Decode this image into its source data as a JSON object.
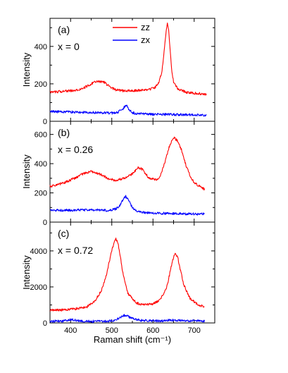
{
  "chart_data": [
    {
      "type": "line",
      "panel_label": "(a)",
      "annotation": "x = 0",
      "ylabel": "Intensity",
      "xlim": [
        350,
        750
      ],
      "ylim": [
        0,
        550
      ],
      "yticks": [
        0,
        200,
        400
      ],
      "legend": {
        "position": "top-center",
        "entries": [
          "zz",
          "zx"
        ]
      },
      "series": [
        {
          "name": "zz",
          "color": "#ff0000",
          "x": [
            350,
            380,
            410,
            430,
            450,
            465,
            480,
            495,
            510,
            530,
            550,
            570,
            590,
            605,
            615,
            622,
            628,
            632,
            635,
            638,
            641,
            645,
            650,
            660,
            680,
            700,
            730
          ],
          "y": [
            155,
            160,
            165,
            175,
            200,
            215,
            210,
            185,
            168,
            162,
            163,
            165,
            170,
            180,
            210,
            270,
            390,
            480,
            525,
            495,
            400,
            280,
            210,
            175,
            155,
            150,
            145
          ]
        },
        {
          "name": "zx",
          "color": "#0000ff",
          "x": [
            350,
            400,
            450,
            500,
            515,
            525,
            532,
            537,
            542,
            550,
            565,
            600,
            650,
            700,
            730
          ],
          "y": [
            52,
            50,
            47,
            44,
            48,
            62,
            80,
            80,
            62,
            45,
            40,
            37,
            36,
            34,
            33
          ]
        }
      ]
    },
    {
      "type": "line",
      "panel_label": "(b)",
      "annotation": "x = 0.26",
      "ylabel": "Intensity",
      "xlim": [
        350,
        750
      ],
      "ylim": [
        0,
        690
      ],
      "yticks": [
        0,
        200,
        400,
        600
      ],
      "series": [
        {
          "name": "zz",
          "color": "#ff0000",
          "x": [
            350,
            380,
            410,
            430,
            450,
            470,
            490,
            510,
            530,
            550,
            565,
            575,
            590,
            610,
            620,
            630,
            640,
            650,
            660,
            670,
            680,
            690,
            700,
            715,
            725
          ],
          "y": [
            245,
            265,
            300,
            330,
            345,
            330,
            300,
            285,
            300,
            330,
            375,
            360,
            300,
            290,
            330,
            420,
            520,
            580,
            555,
            490,
            390,
            320,
            270,
            240,
            225
          ]
        },
        {
          "name": "zx",
          "color": "#0000ff",
          "x": [
            350,
            400,
            450,
            490,
            510,
            520,
            528,
            534,
            540,
            548,
            555,
            565,
            580,
            620,
            680,
            725
          ],
          "y": [
            80,
            82,
            84,
            80,
            90,
            115,
            160,
            175,
            155,
            110,
            85,
            72,
            65,
            60,
            57,
            55
          ]
        }
      ]
    },
    {
      "type": "line",
      "panel_label": "(c)",
      "annotation": "x = 0.72",
      "ylabel": "Intensity",
      "xlabel": "Raman shift (cm⁻¹)",
      "xlim": [
        350,
        750
      ],
      "ylim": [
        0,
        5600
      ],
      "yticks": [
        0,
        2000,
        4000
      ],
      "xticks": [
        400,
        500,
        600,
        700
      ],
      "series": [
        {
          "name": "zz",
          "color": "#ff0000",
          "x": [
            350,
            380,
            410,
            440,
            460,
            475,
            485,
            493,
            500,
            505,
            510,
            515,
            520,
            528,
            540,
            560,
            580,
            600,
            615,
            625,
            635,
            643,
            650,
            655,
            660,
            667,
            675,
            690,
            710,
            725
          ],
          "y": [
            700,
            720,
            780,
            900,
            1250,
            1800,
            2500,
            3300,
            4000,
            4450,
            4650,
            4450,
            3800,
            2600,
            1600,
            1100,
            1000,
            1050,
            1250,
            1550,
            2100,
            3000,
            3650,
            3850,
            3650,
            2900,
            2100,
            1350,
            1000,
            900
          ]
        },
        {
          "name": "zx",
          "color": "#0000ff",
          "x": [
            350,
            380,
            395,
            405,
            420,
            450,
            490,
            510,
            522,
            530,
            538,
            550,
            570,
            610,
            650,
            700,
            725
          ],
          "y": [
            100,
            100,
            170,
            180,
            110,
            90,
            95,
            150,
            320,
            420,
            380,
            240,
            140,
            110,
            160,
            120,
            110
          ]
        }
      ]
    }
  ]
}
